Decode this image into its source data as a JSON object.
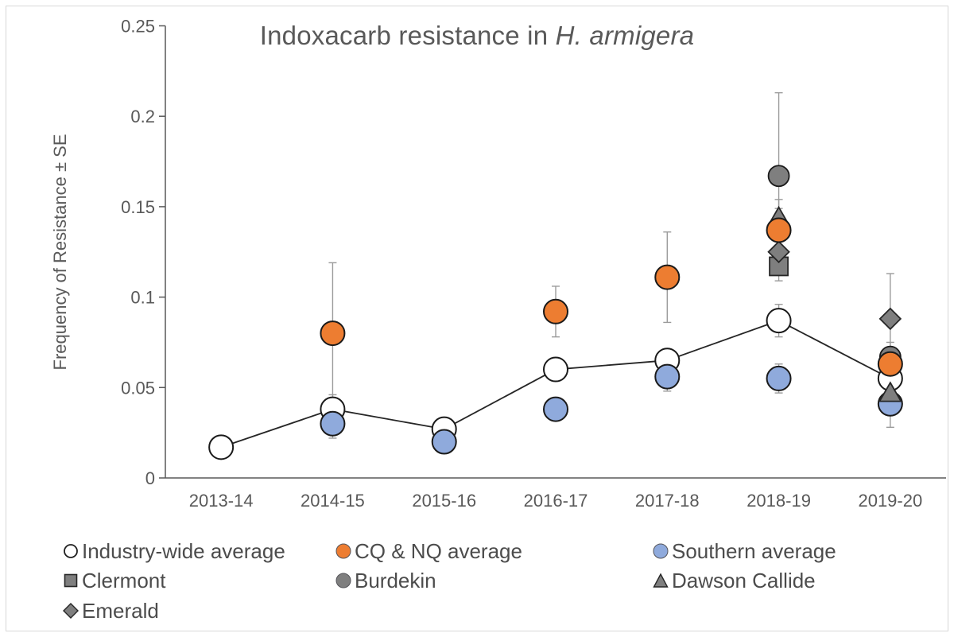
{
  "figure": {
    "title_full": "Indoxacarb resistance in H. armigera"
  },
  "chart_data": {
    "type": "scatter",
    "title": "Indoxacarb resistance in H. armigera",
    "title_prefix": "Indoxacarb resistance in ",
    "title_italic": "H. armigera",
    "xlabel": "",
    "ylabel": "Frequency of Resistance ± SE",
    "ylim": [
      0,
      0.25
    ],
    "yticks": [
      {
        "value": 0,
        "label": "0"
      },
      {
        "value": 0.05,
        "label": "0.05"
      },
      {
        "value": 0.1,
        "label": "0.1"
      },
      {
        "value": 0.15,
        "label": "0.15"
      },
      {
        "value": 0.2,
        "label": "0.2"
      },
      {
        "value": 0.25,
        "label": "0.25"
      }
    ],
    "categories": [
      "2013-14",
      "2014-15",
      "2015-16",
      "2016-17",
      "2017-18",
      "2018-19",
      "2019-20"
    ],
    "grid": false,
    "legend_position": "bottom",
    "error_bar_color": "#9b9b9b",
    "line_color": "#262626",
    "axis_color": "#595959",
    "series": [
      {
        "name": "Industry-wide average",
        "marker": "circle",
        "group": "average",
        "fill": "#FFFFFF",
        "connected": true,
        "values": [
          0.017,
          0.038,
          0.027,
          0.06,
          0.065,
          0.087,
          0.055
        ],
        "se": [
          0.003,
          0.008,
          0.004,
          0.005,
          0.006,
          0.009,
          0.006
        ]
      },
      {
        "name": "CQ & NQ average",
        "marker": "circle",
        "group": "average",
        "fill": "#ED7D31",
        "connected": false,
        "values": [
          null,
          0.08,
          null,
          0.092,
          0.111,
          0.137,
          0.063
        ],
        "se": [
          null,
          0.039,
          null,
          0.014,
          0.025,
          0.012,
          0.008
        ]
      },
      {
        "name": "Southern average",
        "marker": "circle",
        "group": "average",
        "fill": "#8FAADC",
        "connected": false,
        "values": [
          null,
          0.03,
          0.02,
          0.038,
          0.056,
          0.055,
          0.041
        ],
        "se": [
          null,
          0.008,
          0.004,
          0.006,
          0.008,
          0.008,
          0.013
        ]
      },
      {
        "name": "Clermont",
        "marker": "square",
        "group": "region",
        "fill": "#7F7F7F",
        "connected": false,
        "values": [
          null,
          null,
          null,
          null,
          null,
          0.117,
          null
        ],
        "se": [
          null,
          null,
          null,
          null,
          null,
          0.008,
          null
        ]
      },
      {
        "name": "Burdekin",
        "marker": "circle",
        "group": "region",
        "fill": "#7F7F7F",
        "connected": false,
        "values": [
          null,
          null,
          null,
          null,
          null,
          0.167,
          0.067
        ],
        "se": [
          null,
          null,
          null,
          null,
          null,
          0.046,
          0.008
        ]
      },
      {
        "name": "Dawson Callide",
        "marker": "triangle",
        "group": "region",
        "fill": "#7F7F7F",
        "connected": false,
        "values": [
          null,
          null,
          null,
          null,
          null,
          0.144,
          0.047
        ],
        "se": [
          null,
          null,
          null,
          null,
          null,
          0.01,
          0.006
        ]
      },
      {
        "name": "Emerald",
        "marker": "diamond",
        "group": "region",
        "fill": "#7F7F7F",
        "connected": false,
        "values": [
          null,
          null,
          null,
          null,
          null,
          0.125,
          0.088
        ],
        "se": [
          null,
          null,
          null,
          null,
          null,
          0.007,
          0.025
        ]
      }
    ]
  }
}
